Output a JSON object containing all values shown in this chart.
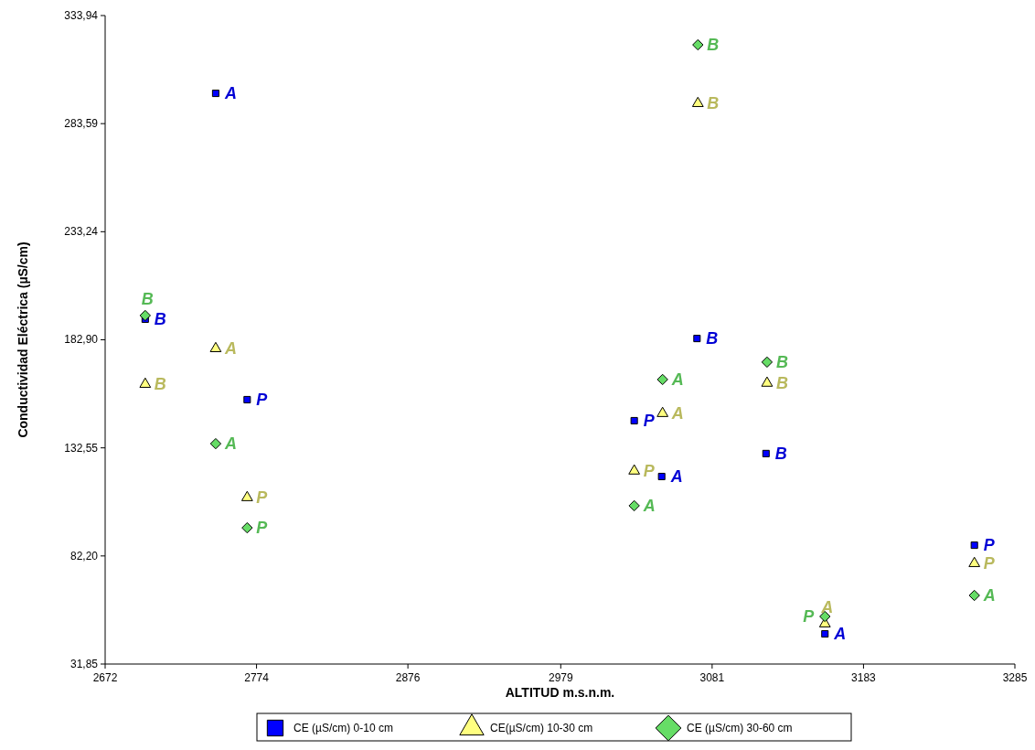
{
  "chart_data": {
    "type": "scatter",
    "xlabel": "ALTITUD m.s.n.m.",
    "ylabel": "Conductividad Eléctrica  (µS/cm)",
    "legend": "bottom",
    "grid": false,
    "xlim": [
      2672,
      3285
    ],
    "xticks": [
      2672,
      2774,
      2876,
      2979,
      3081,
      3183,
      3285
    ],
    "ylim": [
      31.85,
      333.94
    ],
    "yticks": [
      {
        "value": 31.85,
        "label": "31,85"
      },
      {
        "value": 82.2,
        "label": "82,20"
      },
      {
        "value": 132.55,
        "label": "132,55"
      },
      {
        "value": 182.9,
        "label": "182,90"
      },
      {
        "value": 233.24,
        "label": "233,24"
      },
      {
        "value": 283.59,
        "label": "283,59"
      },
      {
        "value": 333.94,
        "label": "333,94"
      }
    ],
    "series": [
      {
        "name": "CE (µS/cm) 0-10 cm",
        "color": "#0000ff",
        "marker": "square",
        "x": [
          2746.5,
          2699,
          2767.7,
          3028.5,
          3047,
          3070.8,
          3117.3,
          3157,
          3257.7
        ],
        "values": [
          297.7,
          192.5,
          155.0,
          145.2,
          119.2,
          183.5,
          129.9,
          45.9,
          87.2
        ],
        "value_labels": [
          "A",
          "B",
          "P",
          "P",
          "A",
          "B",
          "B",
          "A",
          "P"
        ]
      },
      {
        "name": "CE(µS/cm) 10-30 cm",
        "color": "#ffff80",
        "marker": "triangle",
        "x": [
          2699,
          2746.5,
          2767.7,
          3028.5,
          3047.6,
          3071.4,
          3118,
          3157,
          3257.7
        ],
        "values": [
          162.2,
          178.8,
          109.4,
          121.8,
          148.6,
          293.0,
          162.7,
          50.6,
          78.7
        ],
        "value_labels": [
          "B",
          "A",
          "P",
          "P",
          "A",
          "B",
          "B",
          "A",
          "P"
        ]
      },
      {
        "name": "CE  (µS/cm) 30-60 cm",
        "color": "#66dd66",
        "marker": "diamond",
        "x": [
          2699,
          2746.5,
          2767.7,
          3028.5,
          3047.6,
          3071.4,
          3118,
          3157,
          3257.7
        ],
        "values": [
          194.2,
          134.5,
          95.3,
          105.6,
          164.4,
          320.3,
          172.5,
          54.0,
          63.8
        ],
        "value_labels": [
          "B",
          "A",
          "P",
          "A",
          "A",
          "B",
          "B",
          "P",
          "A"
        ]
      }
    ]
  }
}
